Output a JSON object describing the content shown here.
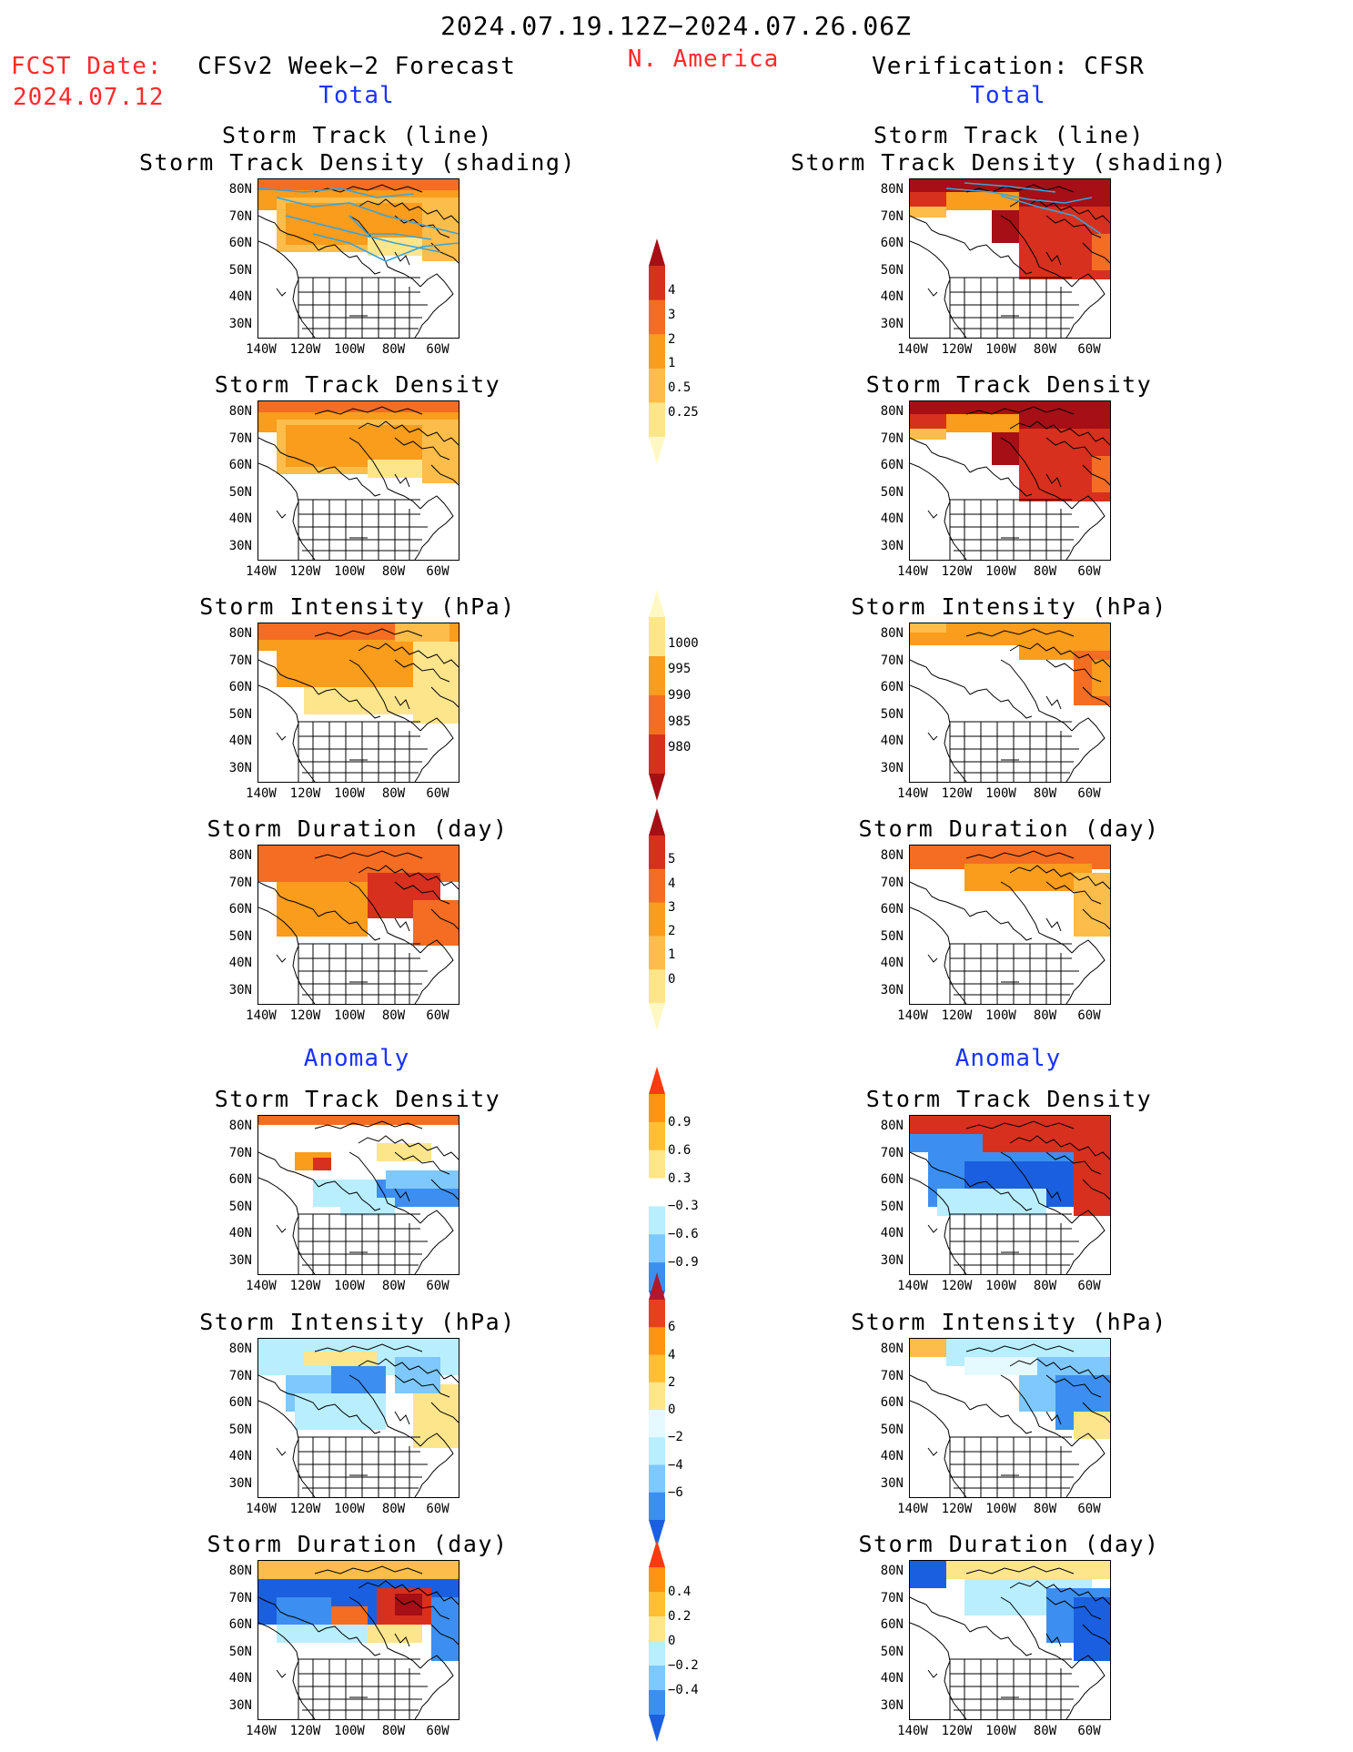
{
  "header": {
    "title": "2024.07.19.12Z−2024.07.26.06Z",
    "region": "N. America",
    "fcst_date_label": "FCST Date:",
    "fcst_date_value": "2024.07.12",
    "left_header": "CFSv2 Week−2 Forecast",
    "right_header": "Verification: CFSR",
    "total_label": "Total",
    "anomaly_label": "Anomaly"
  },
  "axes": {
    "lat_ticks": [
      "80N",
      "70N",
      "60N",
      "50N",
      "40N",
      "30N"
    ],
    "lon_ticks": [
      "140W",
      "120W",
      "100W",
      "80W",
      "60W"
    ]
  },
  "rows": [
    {
      "title_lines": [
        "Storm Track (line)",
        "Storm Track Density (shading)"
      ],
      "section": "total",
      "field": "track_density",
      "tracks": true
    },
    {
      "title_lines": [
        "Storm Track Density"
      ],
      "section": "total",
      "field": "track_density",
      "tracks": false
    },
    {
      "title_lines": [
        "Storm Intensity (hPa)"
      ],
      "section": "total",
      "field": "intensity",
      "tracks": false
    },
    {
      "title_lines": [
        "Storm Duration (day)"
      ],
      "section": "total",
      "field": "duration",
      "tracks": false
    },
    {
      "title_lines": [
        "Storm Track Density"
      ],
      "section": "anomaly",
      "field": "track_density_anom",
      "tracks": false
    },
    {
      "title_lines": [
        "Storm Intensity (hPa)"
      ],
      "section": "anomaly",
      "field": "intensity_anom",
      "tracks": false
    },
    {
      "title_lines": [
        "Storm Duration (day)"
      ],
      "section": "anomaly",
      "field": "duration_anom",
      "tracks": false
    }
  ],
  "colorbars": [
    {
      "name": "track-density",
      "labels": [
        "4",
        "3",
        "2",
        "1",
        "0.5",
        "0.25"
      ],
      "colors": [
        "#a50f15",
        "#d7301f",
        "#f46d23",
        "#fa9c1c",
        "#fdbd4a",
        "#fde58c",
        "#fff8c4"
      ],
      "orientation": "top"
    },
    {
      "name": "intensity",
      "labels": [
        "1000",
        "995",
        "990",
        "985",
        "980"
      ],
      "colors": [
        "#fff8c4",
        "#fde58c",
        "#fa9c1c",
        "#f46d23",
        "#d7301f",
        "#a50f15"
      ],
      "orientation": "bottom"
    },
    {
      "name": "duration",
      "labels": [
        "5",
        "4",
        "3",
        "2",
        "1",
        "0"
      ],
      "colors": [
        "#a50f15",
        "#d7301f",
        "#f46d23",
        "#fa9c1c",
        "#fdbd4a",
        "#fde58c",
        "#fff8c4"
      ],
      "orientation": "top"
    },
    {
      "name": "track-density-anom",
      "labels": [
        "0.9",
        "0.6",
        "0.3",
        "−0.3",
        "−0.6",
        "−0.9"
      ],
      "colors": [
        "#ff3a10",
        "#fe9410",
        "#fec030",
        "#fee68a",
        "#ffffff",
        "#b8eefe",
        "#7ec8fd",
        "#3c8ff0",
        "#1a5fe0"
      ],
      "orientation": "both"
    },
    {
      "name": "intensity-anom",
      "labels": [
        "6",
        "4",
        "2",
        "0",
        "−2",
        "−4",
        "−6"
      ],
      "colors": [
        "#b2182b",
        "#e8401f",
        "#fe9410",
        "#fec030",
        "#fee68a",
        "#e4fafe",
        "#b8eefe",
        "#7ec8fd",
        "#3c8ff0",
        "#1a5fe0"
      ],
      "orientation": "both"
    },
    {
      "name": "duration-anom",
      "labels": [
        "0.4",
        "0.2",
        "0",
        "−0.2",
        "−0.4"
      ],
      "colors": [
        "#ff3a10",
        "#fe9410",
        "#fec030",
        "#fee68a",
        "#b8eefe",
        "#7ec8fd",
        "#3c8ff0",
        "#1a5fe0"
      ],
      "orientation": "both"
    }
  ]
}
